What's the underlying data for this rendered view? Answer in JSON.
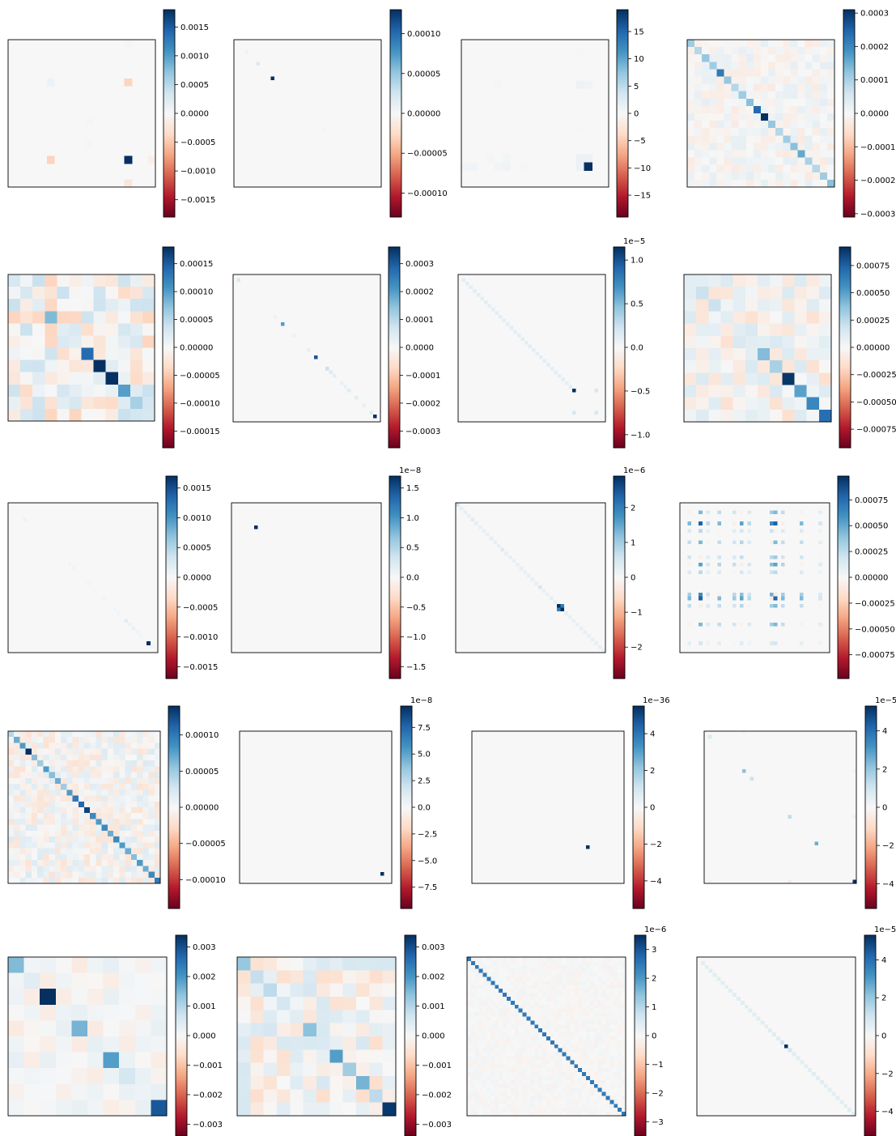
{
  "figure": {
    "type": "heatmap-grid",
    "colormap": "RdBu",
    "colormap_stops": [
      "#67001f",
      "#b2182b",
      "#d6604d",
      "#f4a582",
      "#fddbc7",
      "#f7f7f7",
      "#d1e5f0",
      "#92c5de",
      "#4393c3",
      "#2166ac",
      "#053061"
    ],
    "background": "#ffffff"
  },
  "chart_data": [
    {
      "type": "heatmap",
      "n": 19,
      "vmax": 0.0018,
      "exponent": "",
      "ticks": [
        -0.0015,
        -0.001,
        -0.0005,
        0,
        0.0005,
        0.001,
        0.0015
      ],
      "tick_labels": [
        "−0.0015",
        "−0.0010",
        "−0.0005",
        "0.0000",
        "0.0005",
        "0.0010",
        "0.0015"
      ],
      "cells": [
        [
          15,
          15,
          0.0018
        ],
        [
          15,
          5,
          -0.0004
        ],
        [
          5,
          15,
          -0.0004
        ],
        [
          5,
          5,
          0.0001
        ],
        [
          10,
          10,
          4e-05
        ],
        [
          13,
          10,
          4e-05
        ],
        [
          18,
          15,
          -0.0002
        ],
        [
          15,
          18,
          -0.0001
        ],
        [
          0,
          15,
          3e-05
        ]
      ]
    },
    {
      "type": "heatmap",
      "n": 40,
      "vmax": 0.00013,
      "exponent": "",
      "ticks": [
        -0.0001,
        -5e-05,
        0,
        5e-05,
        0.0001
      ],
      "tick_labels": [
        "−0.00010",
        "−0.00005",
        "0.00000",
        "0.00005",
        "0.00010"
      ],
      "cells": [
        [
          10,
          10,
          0.00013
        ],
        [
          6,
          6,
          2e-05
        ],
        [
          3,
          3,
          6e-06
        ],
        [
          24,
          24,
          2e-06
        ]
      ]
    },
    {
      "type": "heatmap",
      "n": 18,
      "vmax": 19,
      "exponent": "",
      "ticks": [
        -15,
        -10,
        -5,
        0,
        5,
        10,
        15
      ],
      "tick_labels": [
        "−15",
        "−10",
        "−5",
        "0",
        "5",
        "10",
        "15"
      ],
      "cells": [
        [
          15,
          15,
          19
        ],
        [
          15,
          14,
          1.2
        ],
        [
          14,
          15,
          1.2
        ],
        [
          14,
          14,
          1.2
        ],
        [
          5,
          15,
          0.8
        ],
        [
          15,
          5,
          0.8
        ],
        [
          5,
          14,
          1
        ],
        [
          15,
          4,
          0.5
        ],
        [
          15,
          0,
          0.6
        ],
        [
          15,
          1,
          0.6
        ],
        [
          14,
          5,
          0.5
        ],
        [
          5,
          4,
          0.4
        ],
        [
          15,
          7,
          -0.3
        ],
        [
          14,
          3,
          0.3
        ],
        [
          1,
          14,
          0.2
        ],
        [
          10,
          14,
          -0.2
        ]
      ]
    },
    {
      "type": "heatmap",
      "n": 20,
      "vmax": 0.00031,
      "exponent": "",
      "ticks": [
        -0.0003,
        -0.0002,
        -0.0001,
        0,
        0.0001,
        0.0002,
        0.0003
      ],
      "tick_labels": [
        "−0.0003",
        "−0.0002",
        "−0.0001",
        "0.0000",
        "0.0001",
        "0.0002",
        "0.0003"
      ],
      "diag": [
        0.00011,
        9e-05,
        0.00012,
        0.00011,
        0.00022,
        0.00012,
        9e-05,
        0.00011,
        0.00013,
        0.00024,
        0.00031,
        0.00012,
        9e-05,
        0.00011,
        0.00013,
        0.00016,
        0.0001,
        9e-05,
        0.00011,
        0.00013
      ],
      "noise": 3e-05
    },
    {
      "type": "heatmap",
      "n": 12,
      "vmax": 0.00018,
      "exponent": "",
      "ticks": [
        -0.00015,
        -0.0001,
        -5e-05,
        0,
        5e-05,
        0.0001,
        0.00015
      ],
      "tick_labels": [
        "−0.00015",
        "−0.00010",
        "−0.00005",
        "0.00000",
        "0.00005",
        "0.00010",
        "0.00015"
      ],
      "diag": [
        3e-05,
        3e-05,
        2e-05,
        8e-05,
        2e-05,
        2e-05,
        0.00014,
        0.00018,
        0.0002,
        0.0001,
        6e-05,
        3e-05
      ],
      "noise": 4e-05
    },
    {
      "type": "heatmap",
      "n": 40,
      "vmax": 0.00036,
      "exponent": "",
      "ticks": [
        -0.0003,
        -0.0002,
        -0.0001,
        0,
        0.0001,
        0.0002,
        0.0003
      ],
      "tick_labels": [
        "−0.0003",
        "−0.0002",
        "−0.0001",
        "0.0000",
        "0.0001",
        "0.0002",
        "0.0003"
      ],
      "cells": [
        [
          1,
          1,
          6e-05
        ],
        [
          13,
          13,
          0.0002
        ],
        [
          22,
          22,
          0.00031
        ],
        [
          25,
          25,
          8e-05
        ],
        [
          26,
          26,
          5e-05
        ],
        [
          27,
          27,
          4e-05
        ],
        [
          29,
          29,
          3e-05
        ],
        [
          30,
          30,
          3e-05
        ],
        [
          31,
          31,
          4e-05
        ],
        [
          33,
          33,
          4e-05
        ],
        [
          35,
          35,
          3e-05
        ],
        [
          37,
          37,
          5e-05
        ],
        [
          38,
          38,
          0.00036
        ],
        [
          11,
          11,
          2e-05
        ],
        [
          16,
          16,
          2e-05
        ],
        [
          20,
          20,
          3e-05
        ]
      ]
    },
    {
      "type": "heatmap",
      "n": 40,
      "vmax": 1.15e-05,
      "exponent": "1e−5",
      "ticks": [
        -1e-05,
        -5e-06,
        0,
        5e-06,
        1e-05
      ],
      "tick_labels": [
        "−1.0",
        "−0.5",
        "0.0",
        "0.5",
        "1.0"
      ],
      "diag_range": [
        1,
        30
      ],
      "diag_value": 1.2e-06,
      "cells": [
        [
          31,
          31,
          1.15e-05
        ],
        [
          31,
          37,
          2e-06
        ],
        [
          37,
          31,
          2e-06
        ],
        [
          37,
          37,
          2e-06
        ],
        [
          29,
          29,
          1e-06
        ]
      ]
    },
    {
      "type": "heatmap",
      "n": 12,
      "vmax": 0.00092,
      "exponent": "",
      "ticks": [
        -0.00075,
        -0.0005,
        -0.00025,
        0,
        0.00025,
        0.0005,
        0.00075
      ],
      "tick_labels": [
        "−0.00075",
        "−0.00050",
        "−0.00025",
        "0.00000",
        "0.00025",
        "0.00050",
        "0.00075"
      ],
      "diag": [
        0.0001,
        0.0002,
        0.0002,
        0.0001,
        0.0001,
        0.0001,
        0.0004,
        0.0003,
        0.0009,
        0.0005,
        0.0006,
        0.0007
      ],
      "noise": 0.00015
    },
    {
      "type": "heatmap",
      "n": 40,
      "vmax": 0.0017,
      "exponent": "",
      "ticks": [
        -0.0015,
        -0.001,
        -0.0005,
        0,
        0.0005,
        0.001,
        0.0015
      ],
      "tick_labels": [
        "−0.0015",
        "−0.0010",
        "−0.0005",
        "0.0000",
        "0.0005",
        "0.0010",
        "0.0015"
      ],
      "cells": [
        [
          4,
          4,
          0.0001
        ],
        [
          16,
          16,
          5e-05
        ],
        [
          17,
          17,
          5e-05
        ],
        [
          21,
          21,
          5e-05
        ],
        [
          25,
          25,
          6e-05
        ],
        [
          28,
          28,
          5e-05
        ],
        [
          29,
          29,
          6e-05
        ],
        [
          31,
          31,
          7e-05
        ],
        [
          32,
          32,
          0.0001
        ],
        [
          33,
          33,
          0.00012
        ],
        [
          34,
          34,
          8e-05
        ],
        [
          35,
          35,
          6e-05
        ],
        [
          37,
          37,
          5e-05
        ],
        [
          38,
          38,
          5e-05
        ],
        [
          39,
          39,
          6e-05
        ],
        [
          31,
          31,
          0.0002
        ],
        [
          37,
          37,
          0.0017
        ]
      ]
    },
    {
      "type": "heatmap",
      "n": 40,
      "vmax": 1.7e-08,
      "exponent": "1e−8",
      "ticks": [
        -1.5e-08,
        -1e-08,
        -5e-09,
        0,
        5e-09,
        1e-08,
        1.5e-08
      ],
      "tick_labels": [
        "−1.5",
        "−1.0",
        "−0.5",
        "0.0",
        "0.5",
        "1.0",
        "1.5"
      ],
      "cells": [
        [
          6,
          6,
          1.7e-08
        ]
      ]
    },
    {
      "type": "heatmap",
      "n": 40,
      "vmax": 2.9e-06,
      "exponent": "1e−6",
      "ticks": [
        -2e-06,
        -1e-06,
        0,
        1e-06,
        2e-06
      ],
      "tick_labels": [
        "−2",
        "−1",
        "0",
        "1",
        "2"
      ],
      "diag_range": [
        1,
        39
      ],
      "diag_value": 2.5e-07,
      "cells": [
        [
          0,
          0,
          6e-07
        ],
        [
          4,
          4,
          4e-07
        ],
        [
          27,
          27,
          2.9e-06
        ],
        [
          27,
          28,
          2e-06
        ],
        [
          28,
          27,
          2e-06
        ],
        [
          28,
          28,
          2.9e-06
        ],
        [
          22,
          22,
          5e-07
        ],
        [
          12,
          12,
          4e-07
        ]
      ]
    },
    {
      "type": "heatmap",
      "n": 40,
      "vmax": 0.00098,
      "exponent": "",
      "ticks": [
        -0.00075,
        -0.0005,
        -0.00025,
        0,
        0.00025,
        0.0005,
        0.00075
      ],
      "tick_labels": [
        "−0.00075",
        "−0.00050",
        "−0.00025",
        "0.00000",
        "0.00025",
        "0.00050",
        "0.00075"
      ],
      "grid_idx": [
        2,
        5,
        7,
        10,
        14,
        16,
        18,
        24,
        25,
        27,
        32,
        37
      ],
      "grid_weights": [
        0.5,
        0.9,
        0.3,
        0.5,
        0.4,
        0.6,
        0.3,
        0.7,
        0.9,
        0.5,
        0.5,
        0.2
      ]
    },
    {
      "type": "heatmap",
      "n": 26,
      "vmax": 0.00014,
      "exponent": "",
      "ticks": [
        -0.0001,
        -5e-05,
        0,
        5e-05,
        0.0001
      ],
      "tick_labels": [
        "−0.00010",
        "−0.00005",
        "0.00000",
        "0.00005",
        "0.00010"
      ],
      "diag": [
        4e-05,
        7e-05,
        8e-05,
        0.00014,
        6e-05,
        5e-05,
        8e-05,
        6e-05,
        7e-05,
        5e-05,
        8e-05,
        0.0001,
        0.00011,
        0.00013,
        9e-05,
        8e-05,
        9e-05,
        7e-05,
        9e-05,
        8e-05,
        7e-05,
        6e-05,
        8e-05,
        7e-05,
        9e-05,
        0.0001
      ],
      "noise": 2e-05
    },
    {
      "type": "heatmap",
      "n": 40,
      "vmax": 9.5e-08,
      "exponent": "1e−8",
      "ticks": [
        -7.5e-08,
        -5e-08,
        -2.5e-08,
        0,
        2.5e-08,
        5e-08,
        7.5e-08
      ],
      "tick_labels": [
        "−7.5",
        "−5.0",
        "−2.5",
        "0.0",
        "2.5",
        "5.0",
        "7.5"
      ],
      "cells": [
        [
          37,
          37,
          9.5e-08
        ]
      ]
    },
    {
      "type": "heatmap",
      "n": 40,
      "vmax": 5.5e-36,
      "exponent": "1e−36",
      "ticks": [
        -4e-36,
        -2e-36,
        0,
        2e-36,
        4e-36
      ],
      "tick_labels": [
        "−4",
        "−2",
        "0",
        "2",
        "4"
      ],
      "cells": [
        [
          30,
          30,
          5.5e-36
        ]
      ]
    },
    {
      "type": "heatmap",
      "n": 40,
      "vmax": 5.3e-05,
      "exponent": "1e−5",
      "ticks": [
        -4e-05,
        -2e-05,
        0,
        2e-05,
        4e-05
      ],
      "tick_labels": [
        "−4",
        "−2",
        "0",
        "2",
        "4"
      ],
      "cells": [
        [
          1,
          1,
          8e-06
        ],
        [
          10,
          10,
          2.2e-05
        ],
        [
          12,
          12,
          1.2e-05
        ],
        [
          22,
          22,
          1.4e-05
        ],
        [
          29,
          29,
          2.6e-05
        ],
        [
          39,
          39,
          5.3e-05
        ],
        [
          22,
          39,
          -4e-06
        ],
        [
          39,
          22,
          -4e-06
        ],
        [
          0,
          10,
          2e-06
        ],
        [
          39,
          1,
          2e-06
        ],
        [
          10,
          39,
          2e-06
        ]
      ]
    },
    {
      "type": "heatmap",
      "n": 10,
      "vmax": 0.0034,
      "exponent": "",
      "ticks": [
        -0.003,
        -0.002,
        -0.001,
        0,
        0.001,
        0.002,
        0.003
      ],
      "tick_labels": [
        "−0.003",
        "−0.002",
        "−0.001",
        "0.000",
        "0.001",
        "0.002",
        "0.003"
      ],
      "diag": [
        0.0015,
        0.0004,
        0.0034,
        0.0002,
        0.0016,
        0.0003,
        0.0019,
        0.0006,
        0.0002,
        0.0029
      ],
      "noise": 0.0003
    },
    {
      "type": "heatmap",
      "n": 12,
      "vmax": 0.0034,
      "exponent": "",
      "ticks": [
        -0.003,
        -0.002,
        -0.001,
        0,
        0.001,
        0.002,
        0.003
      ],
      "tick_labels": [
        "−0.003",
        "−0.002",
        "−0.001",
        "0.000",
        "0.001",
        "0.002",
        "0.003"
      ],
      "diag": [
        0.0013,
        0.0008,
        0.0009,
        0.0006,
        0.0004,
        0.0014,
        0.0005,
        0.0019,
        0.0012,
        0.0016,
        0.0009,
        0.0033
      ],
      "noise": 0.0006
    },
    {
      "type": "heatmap",
      "n": 40,
      "vmax": 3.5e-06,
      "exponent": "1e−6",
      "ticks": [
        -3e-06,
        -2e-06,
        -1e-06,
        0,
        1e-06,
        2e-06,
        3e-06
      ],
      "tick_labels": [
        "−3",
        "−2",
        "−1",
        "0",
        "1",
        "2",
        "3"
      ],
      "diag_range": [
        0,
        39
      ],
      "diag_value": 2.5e-06,
      "noise": 1.5e-07
    },
    {
      "type": "heatmap",
      "n": 40,
      "vmax": 5.3e-05,
      "exponent": "1e−5",
      "ticks": [
        -4e-05,
        -2e-05,
        0,
        2e-05,
        4e-05
      ],
      "tick_labels": [
        "−4",
        "−2",
        "0",
        "2",
        "4"
      ],
      "diag_range": [
        1,
        39
      ],
      "diag_value": 6e-06,
      "cells": [
        [
          22,
          22,
          5.3e-05
        ],
        [
          21,
          21,
          1e-05
        ],
        [
          23,
          23,
          1e-05
        ]
      ]
    }
  ]
}
